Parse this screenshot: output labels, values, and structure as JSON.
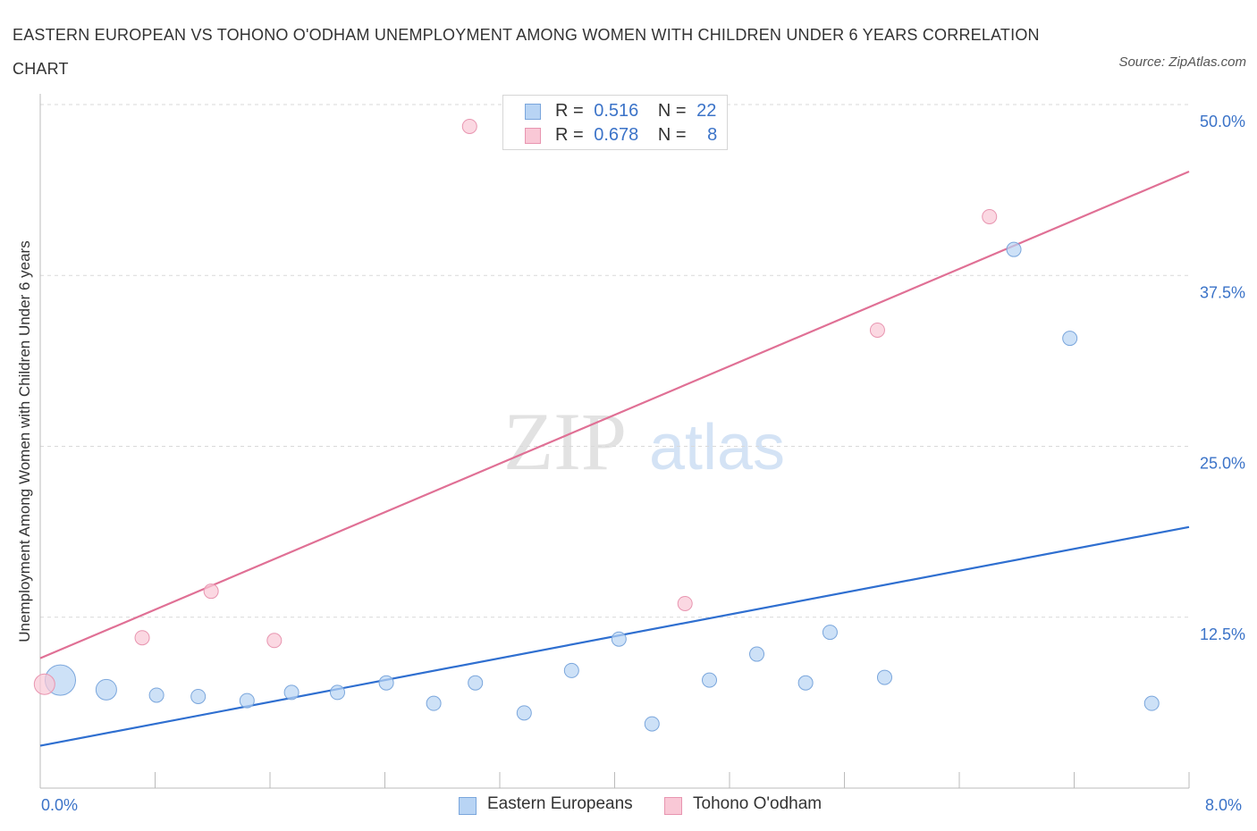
{
  "title": "EASTERN EUROPEAN VS TOHONO O'ODHAM UNEMPLOYMENT AMONG WOMEN WITH CHILDREN UNDER 6 YEARS CORRELATION CHART",
  "source": "Source: ZipAtlas.com",
  "watermark": {
    "zip": "ZIP",
    "atlas": "atlas"
  },
  "legend_top": {
    "rows": [
      {
        "r_label": "R =",
        "r_value": "0.516",
        "n_label": "N =",
        "n_value": "22"
      },
      {
        "r_label": "R =",
        "r_value": "0.678",
        "n_label": "N =",
        "n_value": "8"
      }
    ]
  },
  "legend_bottom": [
    "Eastern Europeans",
    "Tohono O'odham"
  ],
  "x_labels": {
    "min": "0.0%",
    "max": "8.0%"
  },
  "colors": {
    "blue_fill": "#b8d4f4",
    "blue_stroke": "#7aa6dc",
    "blue_line": "#2f6fd0",
    "pink_fill": "#f9c8d6",
    "pink_stroke": "#e895b0",
    "pink_line": "#e07095",
    "axis_text": "#3b73c8",
    "grid": "#d9d9d9"
  },
  "chart_data": {
    "type": "scatter",
    "title": "EASTERN EUROPEAN VS TOHONO O'ODHAM UNEMPLOYMENT AMONG WOMEN WITH CHILDREN UNDER 6 YEARS CORRELATION CHART",
    "xlabel": "",
    "ylabel": "Unemployment Among Women with Children Under 6 years",
    "xlim": [
      0,
      8
    ],
    "ylim": [
      0,
      50
    ],
    "y_ticks": [
      12.5,
      25.0,
      37.5,
      50.0
    ],
    "y_tick_labels": [
      "12.5%",
      "25.0%",
      "37.5%",
      "50.0%"
    ],
    "grid": true,
    "series": [
      {
        "name": "Eastern Europeans",
        "r": 0.516,
        "n": 22,
        "points": [
          {
            "x": 0.14,
            "y": 7.9,
            "size": 3
          },
          {
            "x": 0.46,
            "y": 7.2,
            "size": 2
          },
          {
            "x": 0.81,
            "y": 6.8,
            "size": 1
          },
          {
            "x": 1.1,
            "y": 6.7,
            "size": 1
          },
          {
            "x": 1.44,
            "y": 6.4,
            "size": 1
          },
          {
            "x": 1.75,
            "y": 7.0,
            "size": 1
          },
          {
            "x": 2.07,
            "y": 7.0,
            "size": 1
          },
          {
            "x": 2.41,
            "y": 7.7,
            "size": 1
          },
          {
            "x": 2.74,
            "y": 6.2,
            "size": 1
          },
          {
            "x": 3.03,
            "y": 7.7,
            "size": 1
          },
          {
            "x": 3.37,
            "y": 5.5,
            "size": 1
          },
          {
            "x": 3.7,
            "y": 8.6,
            "size": 1
          },
          {
            "x": 4.03,
            "y": 10.9,
            "size": 1
          },
          {
            "x": 4.26,
            "y": 4.7,
            "size": 1
          },
          {
            "x": 4.66,
            "y": 7.9,
            "size": 1
          },
          {
            "x": 4.99,
            "y": 9.8,
            "size": 1
          },
          {
            "x": 5.33,
            "y": 7.7,
            "size": 1
          },
          {
            "x": 5.5,
            "y": 11.4,
            "size": 1
          },
          {
            "x": 5.88,
            "y": 8.1,
            "size": 1
          },
          {
            "x": 6.78,
            "y": 39.4,
            "size": 1
          },
          {
            "x": 7.17,
            "y": 32.9,
            "size": 1
          },
          {
            "x": 7.74,
            "y": 6.2,
            "size": 1
          }
        ],
        "trend": {
          "x": [
            0,
            8
          ],
          "y": [
            3.1,
            19.1
          ]
        }
      },
      {
        "name": "Tohono O'odham",
        "r": 0.678,
        "n": 8,
        "points": [
          {
            "x": 0.03,
            "y": 7.6,
            "size": 2
          },
          {
            "x": 0.71,
            "y": 11.0,
            "size": 1
          },
          {
            "x": 1.19,
            "y": 14.4,
            "size": 1
          },
          {
            "x": 1.63,
            "y": 10.8,
            "size": 1
          },
          {
            "x": 2.99,
            "y": 48.4,
            "size": 1
          },
          {
            "x": 4.49,
            "y": 13.5,
            "size": 1
          },
          {
            "x": 5.83,
            "y": 33.5,
            "size": 1
          },
          {
            "x": 6.61,
            "y": 41.8,
            "size": 1
          }
        ],
        "trend": {
          "x": [
            0,
            8
          ],
          "y": [
            9.5,
            45.1
          ]
        }
      }
    ]
  }
}
